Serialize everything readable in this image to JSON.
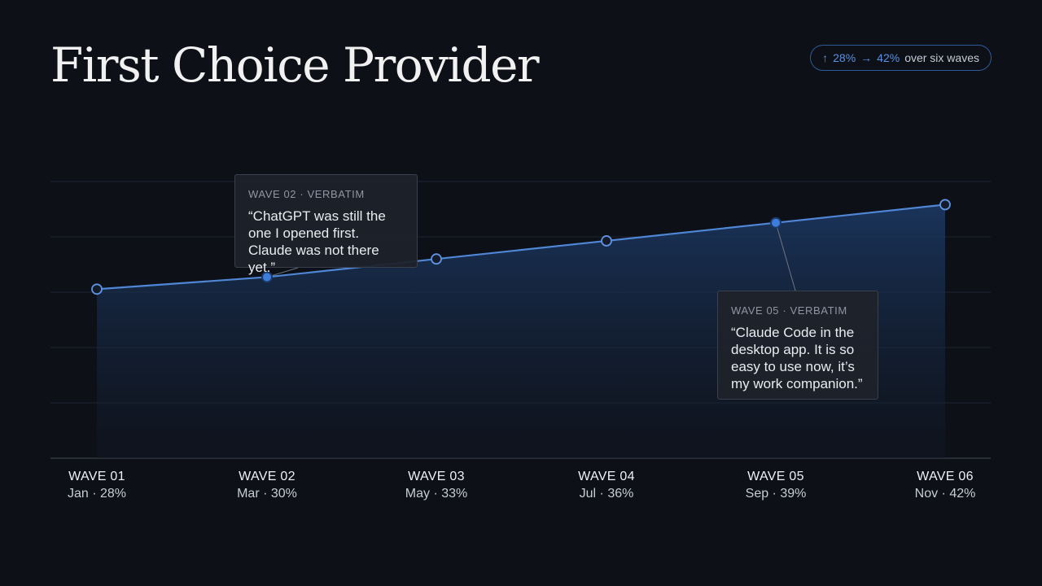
{
  "title": "First Choice Provider",
  "summary_pill": {
    "up_arrow": "↑",
    "start": "28%",
    "right_arrow": "→",
    "end": "42%",
    "suffix": "over six waves"
  },
  "colors": {
    "background": "#0d1017",
    "line": "#4f86d6",
    "highlight_point": "#3d7ddc",
    "area": "#1c3a66"
  },
  "chart_data": {
    "type": "area",
    "title": "First Choice Provider",
    "xlabel": "",
    "ylabel": "",
    "categories": [
      "WAVE 01",
      "WAVE 02",
      "WAVE 03",
      "WAVE 04",
      "WAVE 05",
      "WAVE 06"
    ],
    "months": [
      "Jan",
      "Mar",
      "May",
      "Jul",
      "Sep",
      "Nov"
    ],
    "values": [
      28,
      30,
      33,
      36,
      39,
      42
    ],
    "unit": "%",
    "ylim": [
      0,
      55
    ],
    "grid": true,
    "highlighted": [
      1,
      4
    ]
  },
  "x_labels": [
    {
      "wave": "WAVE 01",
      "sub": "Jan · 28%"
    },
    {
      "wave": "WAVE 02",
      "sub": "Mar · 30%"
    },
    {
      "wave": "WAVE 03",
      "sub": "May · 33%"
    },
    {
      "wave": "WAVE 04",
      "sub": "Jul · 36%"
    },
    {
      "wave": "WAVE 05",
      "sub": "Sep · 39%"
    },
    {
      "wave": "WAVE 06",
      "sub": "Nov · 42%"
    }
  ],
  "callouts": [
    {
      "tag": "WAVE 02 · VERBATIM",
      "quote": "“ChatGPT was still the one I opened first. Claude was not there yet.”",
      "point_index": 1
    },
    {
      "tag": "WAVE 05 · VERBATIM",
      "quote": "“Claude Code in the desktop app. It is so easy to use now, it’s my work companion.”",
      "point_index": 4
    }
  ]
}
